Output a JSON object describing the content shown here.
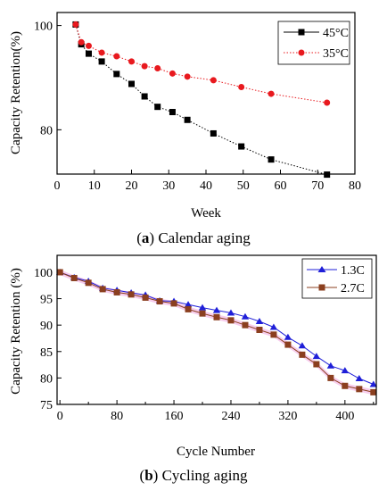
{
  "chart_data": [
    {
      "type": "line",
      "xlabel": "Week",
      "ylabel": "Capacity Retention(%)",
      "xlim": [
        0,
        80
      ],
      "ylim": [
        71.5,
        102.5
      ],
      "xticks": [
        0,
        10,
        20,
        30,
        40,
        50,
        60,
        70,
        80
      ],
      "yticks": [
        80,
        100
      ],
      "legend_position": "top-right",
      "caption": {
        "letter": "a",
        "text": "Calendar aging"
      },
      "series": [
        {
          "name": "45°C",
          "color": "#000000",
          "marker": "square",
          "line": "dotted",
          "x": [
            5,
            6.5,
            8.5,
            12,
            16,
            20,
            23.5,
            27,
            31,
            35,
            42,
            49.5,
            57.5,
            72.5
          ],
          "y": [
            100.2,
            96.4,
            94.6,
            93.1,
            90.7,
            88.8,
            86.4,
            84.4,
            83.4,
            81.9,
            79.3,
            76.8,
            74.3,
            71.4
          ]
        },
        {
          "name": "35°C",
          "color": "#e8191e",
          "marker": "circle",
          "line": "dotted",
          "x": [
            5,
            6.5,
            8.5,
            12,
            16,
            20,
            23.5,
            27,
            31,
            35,
            42,
            49.5,
            57.5,
            72.5
          ],
          "y": [
            100.2,
            96.8,
            96.1,
            94.8,
            94.1,
            93.1,
            92.2,
            91.8,
            90.8,
            90.2,
            89.5,
            88.2,
            86.9,
            85.2
          ]
        }
      ]
    },
    {
      "type": "line",
      "xlabel": "Cycle Number",
      "ylabel": "Capacity Retention (%)",
      "xlim": [
        -4,
        444
      ],
      "ylim": [
        75,
        103.2
      ],
      "xticks": [
        0,
        80,
        160,
        240,
        320,
        400
      ],
      "yticks": [
        75,
        80,
        85,
        90,
        95,
        100
      ],
      "legend_position": "top-right",
      "caption": {
        "letter": "b",
        "text": "Cycling aging"
      },
      "series": [
        {
          "name": "1.3C",
          "color": "#1f1fd8",
          "marker": "triangle",
          "line": "solid",
          "x": [
            0,
            20,
            40,
            60,
            80,
            100,
            120,
            140,
            160,
            180,
            200,
            220,
            240,
            260,
            280,
            300,
            320,
            340,
            360,
            380,
            400,
            420,
            440
          ],
          "y": [
            100,
            99.0,
            98.3,
            97.0,
            96.6,
            96.1,
            95.7,
            94.6,
            94.5,
            93.9,
            93.3,
            92.8,
            92.3,
            91.6,
            90.7,
            89.6,
            87.7,
            86.1,
            84.1,
            82.3,
            81.4,
            79.9,
            78.8
          ]
        },
        {
          "name": "2.7C",
          "color": "#8b3f1f",
          "marker": "square",
          "line": "solid",
          "x": [
            0,
            20,
            40,
            60,
            80,
            100,
            120,
            140,
            160,
            180,
            200,
            220,
            240,
            260,
            280,
            300,
            320,
            340,
            360,
            380,
            400,
            420,
            440
          ],
          "y": [
            100,
            98.9,
            98.0,
            96.8,
            96.2,
            95.8,
            95.2,
            94.5,
            94.1,
            93.0,
            92.2,
            91.5,
            90.9,
            90.0,
            89.1,
            88.2,
            86.3,
            84.4,
            82.6,
            80.0,
            78.5,
            77.9,
            77.3
          ]
        }
      ]
    }
  ]
}
